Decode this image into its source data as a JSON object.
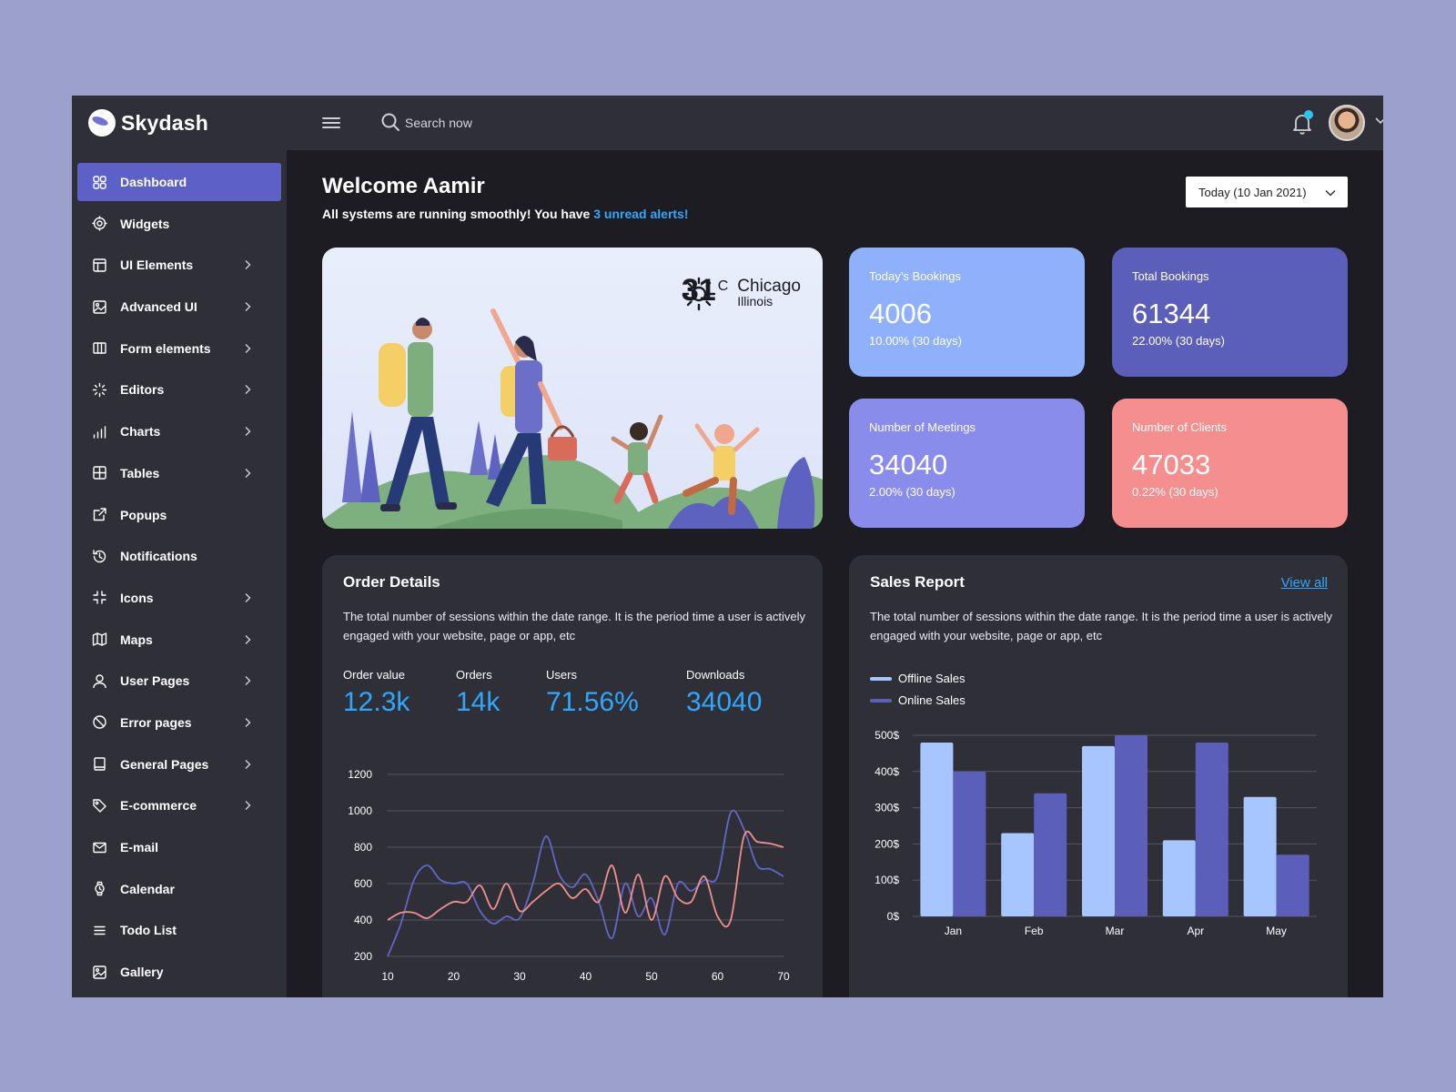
{
  "brand": {
    "name": "Skydash"
  },
  "sidebar": {
    "items": [
      {
        "label": "Dashboard",
        "icon": "grid-icon",
        "chevron": false,
        "active": true
      },
      {
        "label": "Widgets",
        "icon": "gear-icon",
        "chevron": false,
        "active": false
      },
      {
        "label": "UI Elements",
        "icon": "layout-icon",
        "chevron": true,
        "active": false
      },
      {
        "label": "Advanced UI",
        "icon": "image-icon",
        "chevron": true,
        "active": false
      },
      {
        "label": "Form elements",
        "icon": "columns-icon",
        "chevron": true,
        "active": false
      },
      {
        "label": "Editors",
        "icon": "loader-icon",
        "chevron": true,
        "active": false
      },
      {
        "label": "Charts",
        "icon": "bar-chart-icon",
        "chevron": true,
        "active": false
      },
      {
        "label": "Tables",
        "icon": "table-icon",
        "chevron": true,
        "active": false
      },
      {
        "label": "Popups",
        "icon": "external-link-icon",
        "chevron": false,
        "active": false
      },
      {
        "label": "Notifications",
        "icon": "history-icon",
        "chevron": false,
        "active": false
      },
      {
        "label": "Icons",
        "icon": "minimize-icon",
        "chevron": true,
        "active": false
      },
      {
        "label": "Maps",
        "icon": "map-icon",
        "chevron": true,
        "active": false
      },
      {
        "label": "User Pages",
        "icon": "user-icon",
        "chevron": true,
        "active": false
      },
      {
        "label": "Error pages",
        "icon": "ban-icon",
        "chevron": true,
        "active": false
      },
      {
        "label": "General Pages",
        "icon": "book-icon",
        "chevron": true,
        "active": false
      },
      {
        "label": "E-commerce",
        "icon": "tag-icon",
        "chevron": true,
        "active": false
      },
      {
        "label": "E-mail",
        "icon": "mail-icon",
        "chevron": false,
        "active": false
      },
      {
        "label": "Calendar",
        "icon": "watch-icon",
        "chevron": false,
        "active": false
      },
      {
        "label": "Todo List",
        "icon": "list-icon",
        "chevron": false,
        "active": false
      },
      {
        "label": "Gallery",
        "icon": "image-icon",
        "chevron": false,
        "active": false
      }
    ]
  },
  "topbar": {
    "search_placeholder": "Search now",
    "icons": [
      "menu-icon",
      "search-icon",
      "bell-icon",
      "avatar",
      "chevron-down-icon",
      "more-horizontal-icon"
    ],
    "notification_dot_color": "#2bc6ee"
  },
  "header": {
    "welcome": "Welcome Aamir",
    "subtitle_prefix": "All systems are running smoothly! You have ",
    "alerts_link": "3 unread alerts!",
    "date_button": "Today (10 Jan 2021)"
  },
  "weather": {
    "temp": "31",
    "unit": "C",
    "city": "Chicago",
    "region": "Illinois"
  },
  "stats": [
    {
      "label": "Today’s Bookings",
      "value": "4006",
      "note": "10.00% (30 days)",
      "color": "#8fb1fb"
    },
    {
      "label": "Total Bookings",
      "value": "61344",
      "note": "22.00% (30 days)",
      "color": "#5c5fba"
    },
    {
      "label": "Number of Meetings",
      "value": "34040",
      "note": "2.00% (30 days)",
      "color": "#8a8ceb"
    },
    {
      "label": "Number of Clients",
      "value": "47033",
      "note": "0.22% (30 days)",
      "color": "#f58e8e"
    }
  ],
  "order_details": {
    "title": "Order Details",
    "description": "The total number of sessions within the date range. It is the period time a user is actively engaged with your website, page or app, etc",
    "metrics": [
      {
        "label": "Order value",
        "value": "12.3k"
      },
      {
        "label": "Orders",
        "value": "14k"
      },
      {
        "label": "Users",
        "value": "71.56%"
      },
      {
        "label": "Downloads",
        "value": "34040"
      }
    ]
  },
  "sales_report": {
    "title": "Sales Report",
    "view_all": "View all",
    "description": "The total number of sessions within the date range. It is the period time a user is actively engaged with your website, page or app, etc",
    "legend": [
      {
        "label": "Offline Sales",
        "color": "#a7c6ff"
      },
      {
        "label": "Online Sales",
        "color": "#5c5fba"
      }
    ]
  },
  "chart_data": [
    {
      "type": "line",
      "x": [
        10,
        12,
        14,
        16,
        18,
        20,
        22,
        24,
        26,
        28,
        30,
        32,
        34,
        36,
        38,
        40,
        42,
        44,
        46,
        48,
        50,
        52,
        54,
        56,
        58,
        60,
        62,
        64,
        66,
        68,
        70
      ],
      "series": [
        {
          "values": [
            200,
            380,
            620,
            700,
            620,
            600,
            600,
            450,
            380,
            420,
            410,
            600,
            860,
            650,
            580,
            650,
            500,
            300,
            600,
            420,
            520,
            320,
            600,
            560,
            620,
            640,
            990,
            900,
            700,
            680,
            640
          ],
          "color": "#6366c8"
        },
        {
          "values": [
            400,
            440,
            440,
            410,
            460,
            500,
            500,
            590,
            460,
            600,
            450,
            500,
            560,
            600,
            520,
            570,
            500,
            700,
            440,
            650,
            400,
            640,
            520,
            500,
            640,
            420,
            400,
            860,
            830,
            820,
            800
          ],
          "color": "#f0908e"
        }
      ],
      "ylim": [
        200,
        1200
      ],
      "yticks": [
        200,
        400,
        600,
        800,
        1000,
        1200
      ],
      "xticks": [
        10,
        20,
        30,
        40,
        50,
        60,
        70
      ],
      "grid": true
    },
    {
      "type": "bar",
      "categories": [
        "Jan",
        "Feb",
        "Mar",
        "Apr",
        "May"
      ],
      "series": [
        {
          "name": "Offline Sales",
          "values": [
            480,
            230,
            470,
            210,
            330
          ],
          "color": "#a7c6ff"
        },
        {
          "name": "Online Sales",
          "values": [
            400,
            340,
            500,
            480,
            170
          ],
          "color": "#5c5fba"
        }
      ],
      "ylim": [
        0,
        500
      ],
      "yticks": [
        "0$",
        "100$",
        "200$",
        "300$",
        "400$",
        "500$"
      ],
      "grid": true,
      "legend": "top-left"
    }
  ]
}
